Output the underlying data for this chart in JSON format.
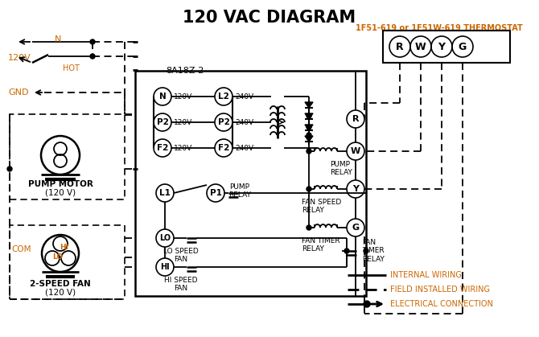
{
  "title": "120 VAC DIAGRAM",
  "title_color": "#000000",
  "title_fontsize": 15,
  "bg_color": "#ffffff",
  "line_color": "#000000",
  "orange_color": "#cc6600",
  "thermostat_label": "1F51-619 or 1F51W-619 THERMOSTAT",
  "control_box_label": "8A18Z-2",
  "terminal_labels": [
    "R",
    "W",
    "Y",
    "G"
  ],
  "input_terminals_left": [
    "N",
    "P2",
    "F2"
  ],
  "input_voltages_left": [
    "120V",
    "120V",
    "120V"
  ],
  "input_terminals_right": [
    "L2",
    "P2",
    "F2"
  ],
  "input_voltages_right": [
    "240V",
    "240V",
    "240V"
  ],
  "relay_labels": [
    "PUMP\nRELAY",
    "FAN SPEED\nRELAY",
    "FAN TIMER\nRELAY"
  ],
  "legend_internal": "INTERNAL WIRING",
  "legend_field": "FIELD INSTALLED WIRING",
  "legend_elec": "ELECTRICAL CONNECTION"
}
